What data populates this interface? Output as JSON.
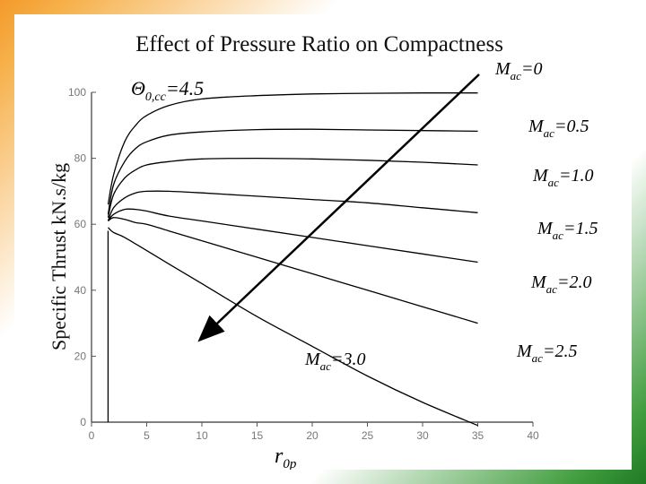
{
  "chart_data": {
    "type": "line",
    "title": "Effect of Pressure Ratio on Compactness",
    "ylabel": "Specific Thrust kN.s/kg",
    "xlabel_main": "r",
    "xlabel_sub": "0p",
    "xlim": [
      0,
      40
    ],
    "ylim": [
      0,
      100
    ],
    "x_ticks": [
      0,
      5,
      10,
      15,
      20,
      25,
      30,
      35,
      40
    ],
    "y_ticks": [
      0,
      20,
      40,
      60,
      80,
      100
    ],
    "theta_label_main": "Θ",
    "theta_label_sub": "0,cc",
    "theta_label_value": "=4.5",
    "arrow_direction": "from Mac=0 toward Mac=3.0",
    "series": [
      {
        "name_main": "M",
        "name_sub": "ac",
        "name_value": "=0",
        "x": [
          1.5,
          2,
          3,
          4,
          5,
          7,
          10,
          15,
          20,
          25,
          30,
          35
        ],
        "y": [
          66,
          75,
          85,
          90,
          93,
          96,
          98,
          99,
          99.5,
          99.7,
          99.8,
          99.8
        ]
      },
      {
        "name_main": "M",
        "name_sub": "ac",
        "name_value": "=0.5",
        "x": [
          1.5,
          2,
          3,
          4,
          5,
          7,
          10,
          15,
          20,
          25,
          30,
          35
        ],
        "y": [
          63,
          72,
          79,
          83,
          85,
          87,
          88,
          88.7,
          88.8,
          88.6,
          88.4,
          88.2
        ]
      },
      {
        "name_main": "M",
        "name_sub": "ac",
        "name_value": "=1.0",
        "x": [
          1.5,
          2,
          3,
          4,
          5,
          7,
          10,
          15,
          20,
          25,
          30,
          35
        ],
        "y": [
          62,
          69,
          74,
          76.5,
          78,
          79,
          79.8,
          80,
          79.8,
          79.4,
          78.8,
          78
        ]
      },
      {
        "name_main": "M",
        "name_sub": "ac",
        "name_value": "=1.5",
        "x": [
          1.5,
          2,
          3,
          4,
          5,
          7,
          10,
          15,
          20,
          25,
          30,
          35
        ],
        "y": [
          61,
          65,
          68,
          69.5,
          70,
          70,
          69.5,
          68.5,
          67.5,
          66.5,
          65,
          63.5
        ]
      },
      {
        "name_main": "M",
        "name_sub": "ac",
        "name_value": "=2.0",
        "x": [
          1.5,
          2,
          3,
          4,
          5,
          7,
          10,
          15,
          20,
          25,
          30,
          35
        ],
        "y": [
          61,
          63,
          64.5,
          64.5,
          64,
          62.5,
          61,
          58.5,
          56,
          53.5,
          51,
          48.5
        ]
      },
      {
        "name_main": "M",
        "name_sub": "ac",
        "name_value": "=2.5",
        "x": [
          1.5,
          2,
          3,
          4,
          5,
          7,
          10,
          15,
          20,
          25,
          30,
          35
        ],
        "y": [
          61,
          62,
          61.5,
          60.5,
          60,
          58,
          55,
          50,
          45,
          40,
          35,
          30
        ]
      },
      {
        "name_main": "M",
        "name_sub": "ac",
        "name_value": "=3.0",
        "x": [
          1.5,
          2,
          3,
          5,
          7,
          10,
          15,
          20,
          25,
          30,
          35
        ],
        "y": [
          59,
          57.5,
          56,
          52,
          48,
          42,
          32,
          23,
          14,
          6,
          -1
        ]
      }
    ]
  }
}
